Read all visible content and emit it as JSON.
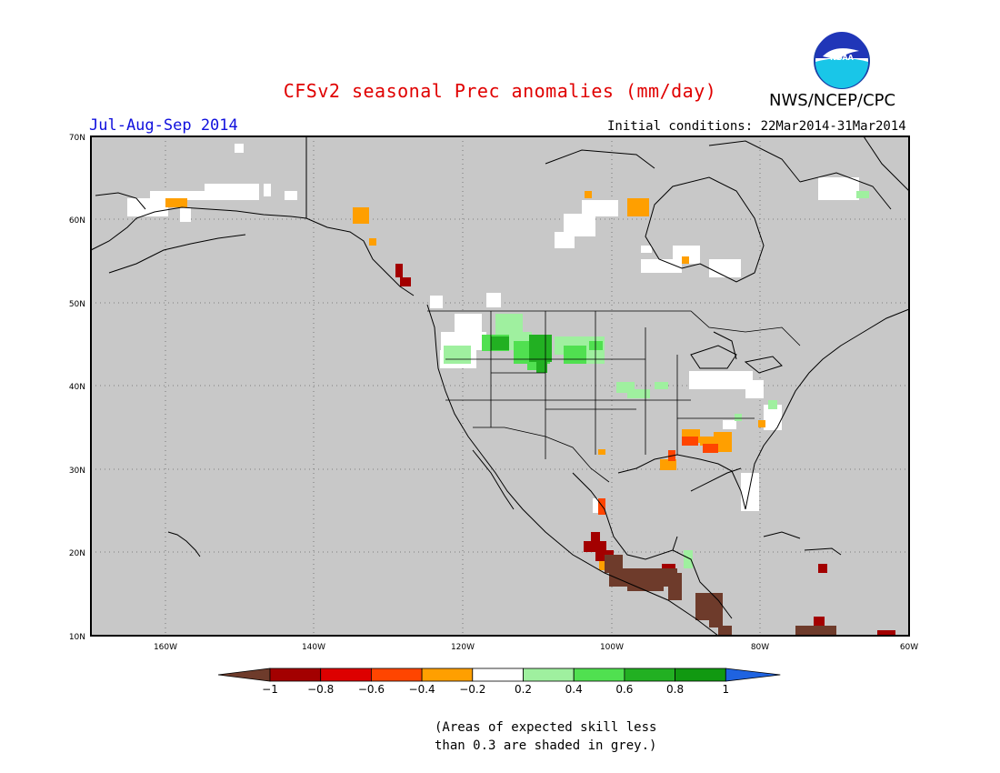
{
  "title": "CFSv2 seasonal Prec anomalies (mm/day)",
  "agency": "NWS/NCEP/CPC",
  "logo_text": "NOAA",
  "season": "Jul-Aug-Sep 2014",
  "initial_conditions": "Initial conditions: 22Mar2014-31Mar2014",
  "lat_labels": [
    "70N",
    "60N",
    "50N",
    "40N",
    "30N",
    "20N",
    "10N"
  ],
  "lon_labels": [
    "160W",
    "140W",
    "120W",
    "100W",
    "80W",
    "60W"
  ],
  "colorbar": {
    "labels": [
      "−1",
      "−0.8",
      "−0.6",
      "−0.4",
      "−0.2",
      "0.2",
      "0.4",
      "0.6",
      "0.8",
      "1"
    ],
    "colors": [
      "#6e3b2b",
      "#a30000",
      "#dd0000",
      "#ff4500",
      "#ff9f00",
      "#ffffff",
      "#9ff09f",
      "#50e050",
      "#22b022",
      "#119911",
      "#1f63e0"
    ]
  },
  "footnote_line1": "(Areas of expected skill less",
  "footnote_line2": "than 0.3 are shaded in grey.)",
  "colors": {
    "grey": "#c8c8c8",
    "title": "#e00000",
    "season": "#1010dd"
  }
}
